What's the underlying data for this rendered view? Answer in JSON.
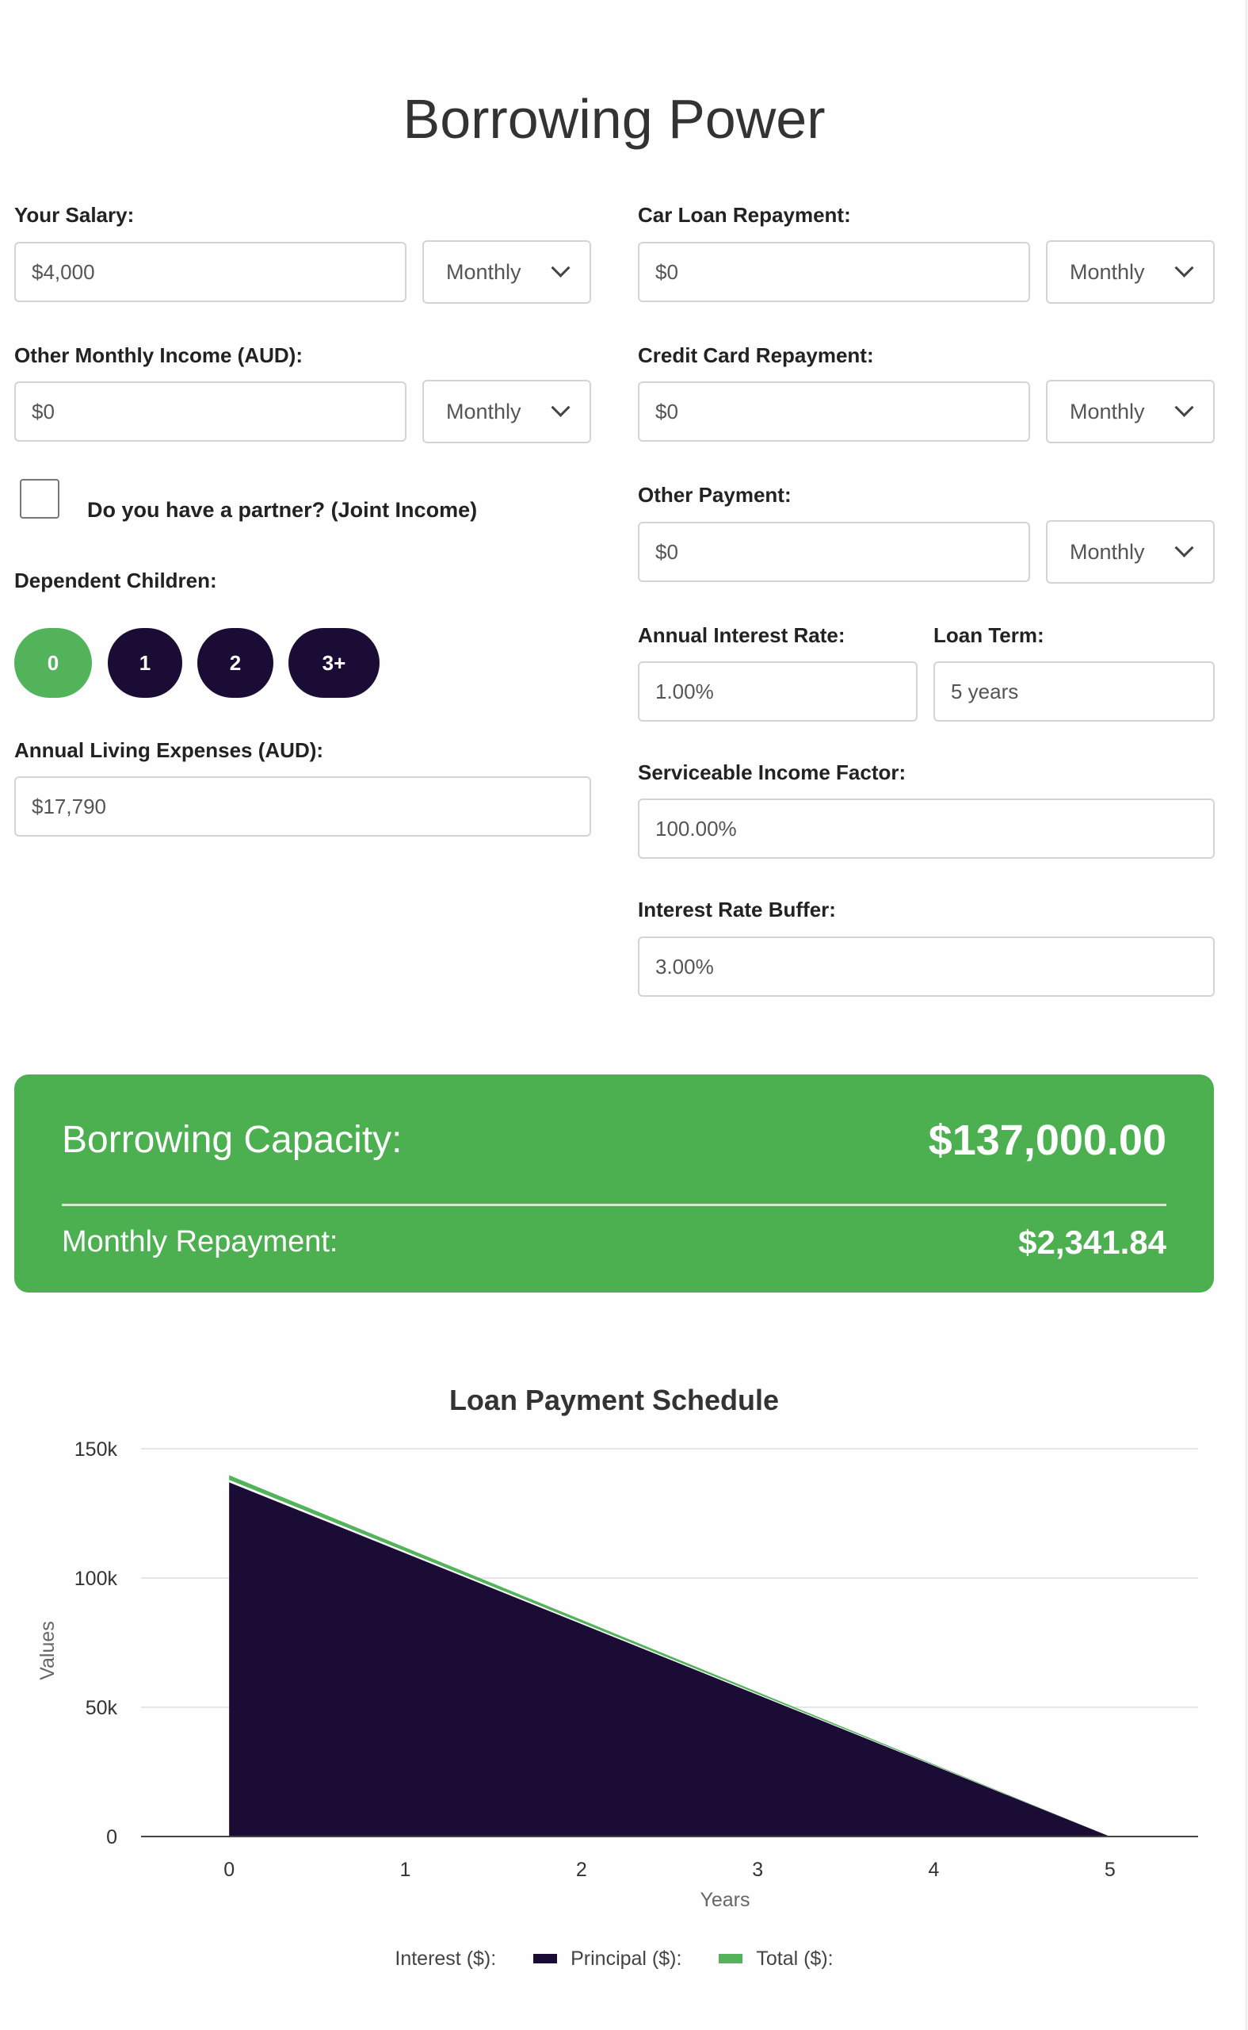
{
  "page": {
    "title": "Borrowing Power"
  },
  "form": {
    "salary": {
      "label": "Your Salary:",
      "value": "$4,000",
      "frequency": "Monthly"
    },
    "other_income": {
      "label": "Other Monthly Income (AUD):",
      "value": "$0",
      "frequency": "Monthly"
    },
    "partner": {
      "label": "Do you have a partner? (Joint Income)",
      "checked": false
    },
    "dependents": {
      "label": "Dependent Children:",
      "options": [
        "0",
        "1",
        "2",
        "3+"
      ],
      "selected": "0"
    },
    "living_expenses": {
      "label": "Annual Living Expenses (AUD):",
      "value": "$17,790"
    },
    "car_loan": {
      "label": "Car Loan Repayment:",
      "value": "$0",
      "frequency": "Monthly"
    },
    "credit_card": {
      "label": "Credit Card Repayment:",
      "value": "$0",
      "frequency": "Monthly"
    },
    "other_payment": {
      "label": "Other Payment:",
      "value": "$0",
      "frequency": "Monthly"
    },
    "interest_rate": {
      "label": "Annual Interest Rate:",
      "value": "1.00%"
    },
    "loan_term": {
      "label": "Loan Term:",
      "value": "5 years"
    },
    "income_factor": {
      "label": "Serviceable Income Factor:",
      "value": "100.00%"
    },
    "rate_buffer": {
      "label": "Interest Rate Buffer:",
      "value": "3.00%"
    }
  },
  "result": {
    "capacity_label": "Borrowing Capacity:",
    "capacity_value": "$137,000.00",
    "repayment_label": "Monthly Repayment:",
    "repayment_value": "$2,341.84"
  },
  "colors": {
    "accent": "#4caf50",
    "dark": "#1b0c35",
    "active_pill": "#52b35a"
  },
  "chart_data": {
    "type": "area",
    "title": "Loan Payment Schedule",
    "xlabel": "Years",
    "ylabel": "Values",
    "x": [
      0,
      1,
      2,
      3,
      4,
      5
    ],
    "xlim": [
      -0.5,
      5.5
    ],
    "ylim": [
      0,
      150000
    ],
    "y_ticks": [
      0,
      50000,
      100000,
      150000
    ],
    "y_tick_labels": [
      "0",
      "50k",
      "100k",
      "150k"
    ],
    "grid": true,
    "legend_position": "bottom",
    "series": [
      {
        "name": "Interest ($):",
        "values": [
          2750,
          2200,
          1650,
          1100,
          550,
          0
        ],
        "color": "#ffffff"
      },
      {
        "name": "Principal ($):",
        "values": [
          137000,
          109600,
          82200,
          54800,
          27400,
          0
        ],
        "color": "#1b0c35"
      },
      {
        "name": "Total ($):",
        "values": [
          139750,
          111800,
          83850,
          55900,
          27950,
          0
        ],
        "color": "#52b35a"
      }
    ]
  }
}
